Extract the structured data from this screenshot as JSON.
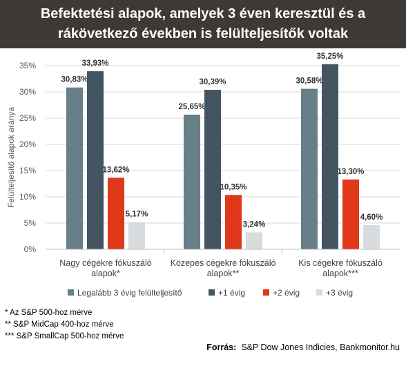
{
  "header": {
    "title_line1": "Befektetési alapok, amelyek 3 éven keresztül és a",
    "title_line2": "rákövetkező években is felülteljesítők voltak"
  },
  "chart_data": {
    "type": "bar",
    "categories": [
      [
        "Nagy cégekre fókuszáló",
        "alapok*"
      ],
      [
        "Közepes cégekre fókuszáló",
        "alapok**"
      ],
      [
        "Kis cégekre fókuszáló",
        "alapok***"
      ]
    ],
    "series": [
      {
        "name": "Legalább 3 évig felülteljesítő",
        "color": "#667f89",
        "values": [
          30.83,
          25.65,
          30.58
        ],
        "labels": [
          "30,83%",
          "25,65%",
          "30,58%"
        ]
      },
      {
        "name": "+1 évig",
        "color": "#445562",
        "values": [
          33.93,
          30.39,
          35.25
        ],
        "labels": [
          "33,93%",
          "30,39%",
          "35,25%"
        ]
      },
      {
        "name": "+2 évig",
        "color": "#e1371a",
        "values": [
          13.62,
          10.35,
          13.3
        ],
        "labels": [
          "13,62%",
          "10,35%",
          "13,30%"
        ]
      },
      {
        "name": "+3 évig",
        "color": "#d9dcdf",
        "values": [
          5.17,
          3.24,
          4.6
        ],
        "labels": [
          "5,17%",
          "3,24%",
          "4,60%"
        ]
      }
    ],
    "ylabel": "Felülteljesítő alapok aránya",
    "ylim": [
      0,
      35
    ],
    "yticks": [
      0,
      5,
      10,
      15,
      20,
      25,
      30,
      35
    ],
    "ytick_labels": [
      "0%",
      "5%",
      "10%",
      "15%",
      "20%",
      "25%",
      "30%",
      "35%"
    ],
    "grid": true,
    "legend": "bottom"
  },
  "footnotes": [
    "* Az S&P 500-hoz mérve",
    "** S&P MidCap 400-hoz mérve",
    "*** S&P SmallCap 500-hoz mérve"
  ],
  "source": {
    "label": "Forrás:",
    "text": "S&P Dow Jones Indicies, Bankmonitor.hu"
  }
}
